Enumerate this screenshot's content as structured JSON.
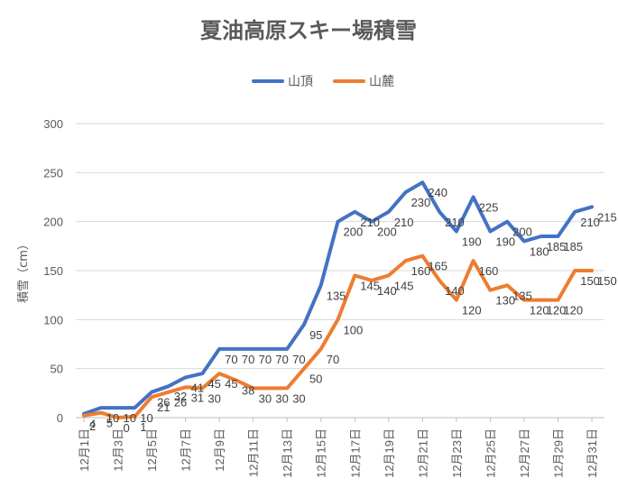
{
  "chart_data": {
    "type": "line",
    "title": "夏油高原スキー場積雪",
    "xlabel": "",
    "ylabel": "積雪（cm）",
    "ylim": [
      0,
      300
    ],
    "yticks": [
      0,
      50,
      100,
      150,
      200,
      250,
      300
    ],
    "grid": true,
    "legend_position": "top",
    "categories": [
      "12月1日",
      "12月2日",
      "12月3日",
      "12月4日",
      "12月5日",
      "12月6日",
      "12月7日",
      "12月8日",
      "12月9日",
      "12月10日",
      "12月11日",
      "12月12日",
      "12月13日",
      "12月14日",
      "12月15日",
      "12月16日",
      "12月17日",
      "12月18日",
      "12月19日",
      "12月20日",
      "12月21日",
      "12月22日",
      "12月23日",
      "12月24日",
      "12月25日",
      "12月26日",
      "12月27日",
      "12月28日",
      "12月29日",
      "12月30日",
      "12月31日"
    ],
    "tick_labels": [
      "12月1日",
      "12月3日",
      "12月5日",
      "12月7日",
      "12月9日",
      "12月11日",
      "12月13日",
      "12月15日",
      "12月17日",
      "12月19日",
      "12月21日",
      "12月23日",
      "12月25日",
      "12月27日",
      "12月29日",
      "12月31日"
    ],
    "series": [
      {
        "name": "山頂",
        "color": "#4472c4",
        "values": [
          4,
          10,
          10,
          10,
          26,
          32,
          41,
          45,
          70,
          70,
          70,
          70,
          70,
          95,
          135,
          200,
          210,
          200,
          210,
          230,
          240,
          210,
          190,
          225,
          190,
          200,
          180,
          185,
          185,
          210,
          215
        ]
      },
      {
        "name": "山麓",
        "color": "#ed7d31",
        "values": [
          2,
          5,
          0,
          1,
          21,
          26,
          31,
          30,
          45,
          38,
          30,
          30,
          30,
          50,
          70,
          100,
          145,
          140,
          145,
          160,
          165,
          140,
          120,
          160,
          130,
          135,
          120,
          120,
          120,
          150,
          150
        ]
      }
    ]
  }
}
